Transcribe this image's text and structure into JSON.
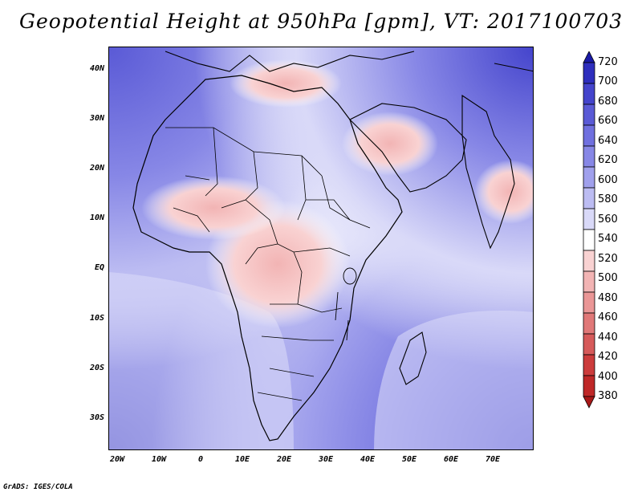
{
  "title": "Geopotential Height at 950hPa [gpm], VT: 2017100703",
  "credit": "GrADS: IGES/COLA",
  "lat_labels": [
    "40N",
    "30N",
    "20N",
    "10N",
    "EQ",
    "10S",
    "20S",
    "30S"
  ],
  "lon_labels": [
    "20W",
    "10W",
    "0",
    "10E",
    "20E",
    "30E",
    "40E",
    "50E",
    "60E",
    "70E"
  ],
  "colorbar": {
    "levels": [
      "720",
      "700",
      "680",
      "660",
      "640",
      "620",
      "600",
      "580",
      "560",
      "540",
      "520",
      "500",
      "480",
      "460",
      "440",
      "420",
      "400",
      "380"
    ],
    "colors": [
      "#1a1aa6",
      "#2e2ebd",
      "#4444cc",
      "#5a5ad6",
      "#7070df",
      "#8787e6",
      "#a0a0ec",
      "#bcbcf2",
      "#d9d9f8",
      "#ffffff",
      "#f9d2d2",
      "#f2b4b4",
      "#ea9696",
      "#e07878",
      "#d65a5a",
      "#cc3c3c",
      "#bf2828",
      "#a81818"
    ]
  }
}
